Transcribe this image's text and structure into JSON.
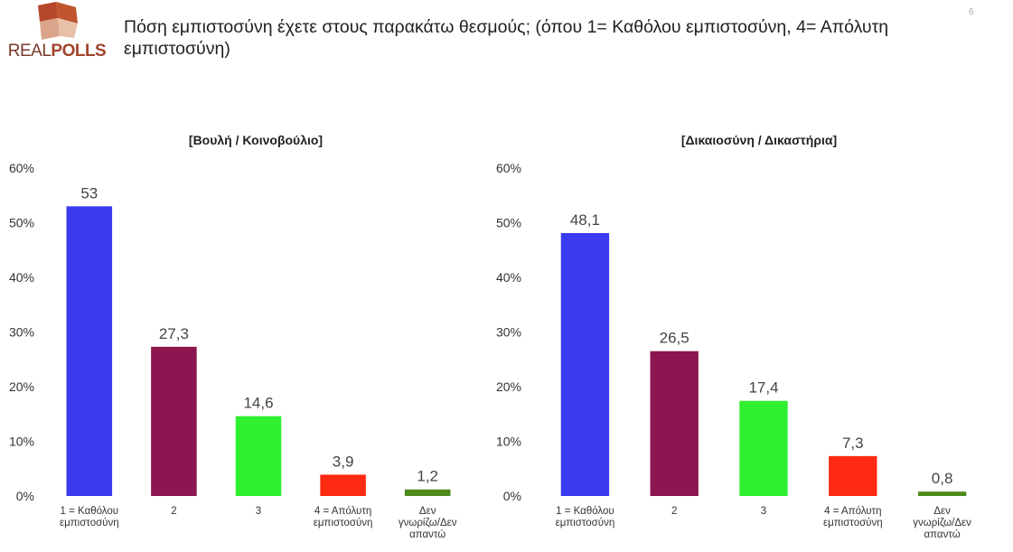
{
  "header": {
    "logo_text_light": "REAL",
    "logo_text_bold": "POLLS",
    "title": "Πόση εμπιστοσύνη έχετε στους παρακάτω θεσμούς; (όπου 1= Καθόλου εμπιστοσύνη, 4= Απόλυτη εμπιστοσύνη)",
    "page_number": "6"
  },
  "chart_data": [
    {
      "type": "bar",
      "title": "[Βουλή / Κοινοβούλιο]",
      "categories": [
        [
          "1 = Καθόλου",
          "εμπιστοσύνη"
        ],
        [
          "2"
        ],
        [
          "3"
        ],
        [
          "4 = Απόλυτη",
          "εμπιστοσύνη"
        ],
        [
          "Δεν",
          "γνωρίζω/Δεν",
          "απαντώ"
        ]
      ],
      "values": [
        53,
        27.3,
        14.6,
        3.9,
        1.2
      ],
      "data_labels": [
        "53",
        "27,3",
        "14,6",
        "3,9",
        "1,2"
      ],
      "colors": [
        "#3a3aee",
        "#8c1650",
        "#2fef2f",
        "#ff2a12",
        "#4e8a1a"
      ],
      "y_ticks": [
        "0%",
        "10%",
        "20%",
        "30%",
        "40%",
        "50%",
        "60%"
      ],
      "ylim": [
        0,
        60
      ],
      "grid": false,
      "legend": "none"
    },
    {
      "type": "bar",
      "title": "[Δικαιοσύνη / Δικαστήρια]",
      "categories": [
        [
          "1 = Καθόλου",
          "εμπιστοσύνη"
        ],
        [
          "2"
        ],
        [
          "3"
        ],
        [
          "4 = Απόλυτη",
          "εμπιστοσύνη"
        ],
        [
          "Δεν",
          "γνωρίζω/Δεν",
          "απαντώ"
        ]
      ],
      "values": [
        48.1,
        26.5,
        17.4,
        7.3,
        0.8
      ],
      "data_labels": [
        "48,1",
        "26,5",
        "17,4",
        "7,3",
        "0,8"
      ],
      "colors": [
        "#3a3aee",
        "#8c1650",
        "#2fef2f",
        "#ff2a12",
        "#4e8a1a"
      ],
      "y_ticks": [
        "0%",
        "10%",
        "20%",
        "30%",
        "40%",
        "50%",
        "60%"
      ],
      "ylim": [
        0,
        60
      ],
      "grid": false,
      "legend": "none"
    }
  ]
}
